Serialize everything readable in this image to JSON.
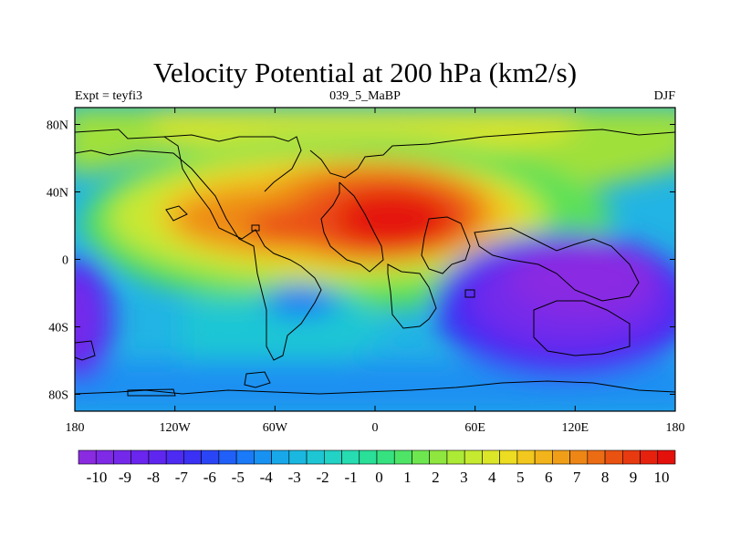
{
  "chart_data": {
    "type": "heatmap",
    "title": "Velocity Potential at 200 hPa (km2/s)",
    "left_string": "Expt = teyfi3",
    "center_string": "039_5_MaBP",
    "right_string": "DJF",
    "x_ticks": [
      {
        "value": -180,
        "label": "180"
      },
      {
        "value": -120,
        "label": "120W"
      },
      {
        "value": -60,
        "label": "60W"
      },
      {
        "value": 0,
        "label": "0"
      },
      {
        "value": 60,
        "label": "60E"
      },
      {
        "value": 120,
        "label": "120E"
      },
      {
        "value": 180,
        "label": "180"
      }
    ],
    "y_ticks": [
      {
        "value": 80,
        "label": "80N"
      },
      {
        "value": 40,
        "label": "40N"
      },
      {
        "value": 0,
        "label": "0"
      },
      {
        "value": -40,
        "label": "40S"
      },
      {
        "value": -80,
        "label": "80S"
      }
    ],
    "xlim": [
      -180,
      180
    ],
    "ylim": [
      -90,
      90
    ],
    "colorbar_levels": [
      -10,
      -9,
      -8,
      -7,
      -6,
      -5,
      -4,
      -3,
      -2,
      -1,
      0,
      1,
      2,
      3,
      4,
      5,
      6,
      7,
      8,
      9,
      10
    ],
    "colorbar_colors": [
      "#8a2be2",
      "#7f2ae6",
      "#7429ea",
      "#6a25ee",
      "#5f26f0",
      "#4d2bf2",
      "#3a31f4",
      "#2a45f6",
      "#2060f8",
      "#1a7af8",
      "#1892f2",
      "#18a8ea",
      "#1ab8e0",
      "#1ec6d4",
      "#22d2c4",
      "#26dcb0",
      "#2adf98",
      "#36e280",
      "#4ee466",
      "#6ee650",
      "#8ee63e",
      "#acea36",
      "#c6ea30",
      "#dce628",
      "#ecdc22",
      "#f2c81e",
      "#f2b41a",
      "#f09e18",
      "#ee8616",
      "#ec6c14",
      "#ea5212",
      "#e83a10",
      "#e6220e",
      "#e4100c"
    ],
    "features": [
      {
        "name": "positive maximum",
        "lon": 10,
        "lat": 15,
        "value": 10
      },
      {
        "name": "positive lobe",
        "lon": -60,
        "lat": 35,
        "value": 7
      },
      {
        "name": "negative minimum",
        "lon": 130,
        "lat": -15,
        "value": -10
      },
      {
        "name": "negative lobe",
        "lon": -175,
        "lat": -35,
        "value": -9
      }
    ]
  }
}
